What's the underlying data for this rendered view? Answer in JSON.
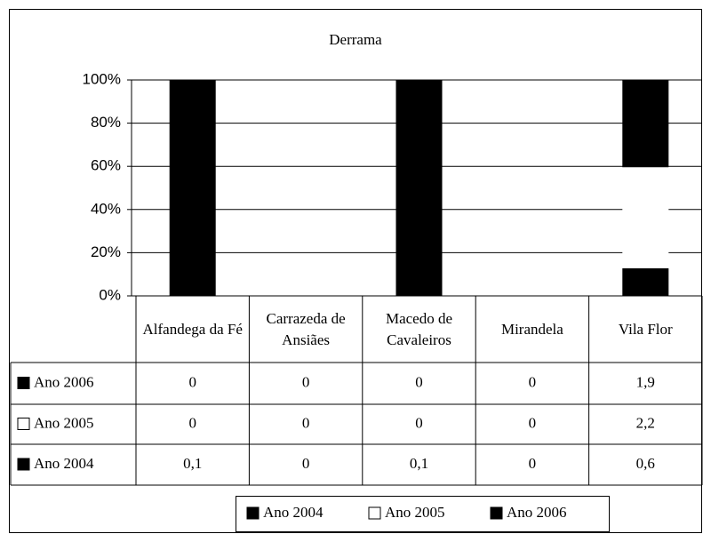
{
  "chart_data": {
    "type": "stacked_percent_bar",
    "title": "Derrama",
    "categories": [
      "Alfandega da Fé",
      "Carrazeda de Ansiães",
      "Macedo de Cavaleiros",
      "Mirandela",
      "Vila Flor"
    ],
    "series": [
      {
        "name": "Ano 2004",
        "color": "#000000",
        "values": [
          0.1,
          0,
          0.1,
          0,
          0.6
        ],
        "value_labels": [
          "0,1",
          "0",
          "0,1",
          "0",
          "0,6"
        ]
      },
      {
        "name": "Ano 2005",
        "color": "#ffffff",
        "values": [
          0,
          0,
          0,
          0,
          2.2
        ],
        "value_labels": [
          "0",
          "0",
          "0",
          "0",
          "2,2"
        ]
      },
      {
        "name": "Ano 2006",
        "color": "#000000",
        "values": [
          0,
          0,
          0,
          0,
          1.9
        ],
        "value_labels": [
          "0",
          "0",
          "0",
          "0",
          "1,9"
        ]
      }
    ],
    "ylim": [
      0,
      100
    ],
    "yticks": [
      {
        "value": 0,
        "label": "0%"
      },
      {
        "value": 20,
        "label": "20%"
      },
      {
        "value": 40,
        "label": "40%"
      },
      {
        "value": 60,
        "label": "60%"
      },
      {
        "value": 80,
        "label": "80%"
      },
      {
        "value": 100,
        "label": "100%"
      }
    ],
    "grid": true,
    "legend": "bottom"
  }
}
